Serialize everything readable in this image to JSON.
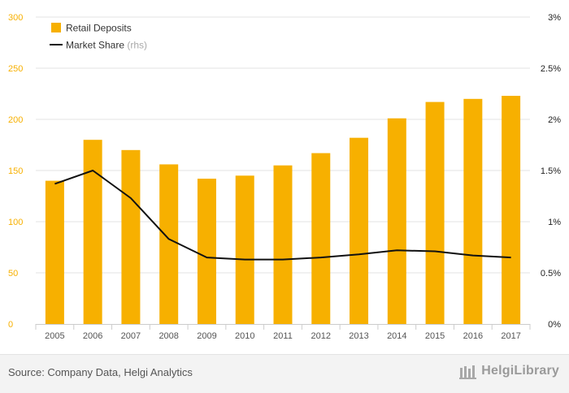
{
  "chart_data": {
    "type": "bar",
    "categories": [
      "2005",
      "2006",
      "2007",
      "2008",
      "2009",
      "2010",
      "2011",
      "2012",
      "2013",
      "2014",
      "2015",
      "2016",
      "2017"
    ],
    "series": [
      {
        "name": "Retail Deposits",
        "type": "bar",
        "axis": "left",
        "color": "#f7b000",
        "values": [
          140,
          180,
          170,
          156,
          142,
          145,
          155,
          167,
          182,
          201,
          217,
          220,
          223
        ]
      },
      {
        "name": "Market Share",
        "legend_suffix": "(rhs)",
        "type": "line",
        "axis": "right",
        "color": "#111111",
        "values": [
          1.37,
          1.5,
          1.23,
          0.83,
          0.65,
          0.63,
          0.63,
          0.65,
          0.68,
          0.72,
          0.71,
          0.67,
          0.65
        ]
      }
    ],
    "ylim_left": [
      0,
      300
    ],
    "yticks_left": [
      "0",
      "50",
      "100",
      "150",
      "200",
      "250",
      "300"
    ],
    "ylim_right": [
      0,
      3
    ],
    "yticks_right": [
      "0%",
      "0.5%",
      "1%",
      "1.5%",
      "2%",
      "2.5%",
      "3%"
    ],
    "left_axis_color": "#f7b000",
    "grid": true,
    "legend_position": "top-left"
  },
  "footer": {
    "source": "Source: Company Data, Helgi Analytics",
    "brand": "HelgiLibrary"
  }
}
